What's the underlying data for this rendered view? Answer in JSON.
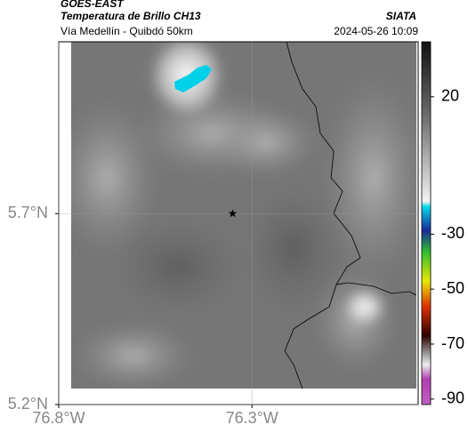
{
  "header": {
    "source": "GOES-EAST",
    "product": "Temperatura de Brillo CH13",
    "agency": "SIATA",
    "route": "Vía Medellín - Quibdó 50km",
    "datetime": "2024-05-26 10:09"
  },
  "map": {
    "xlim": [
      -76.8,
      -75.87
    ],
    "ylim": [
      5.2,
      6.15
    ],
    "xticks": [
      {
        "value": -76.8,
        "label": "76.8°W"
      },
      {
        "value": -76.3,
        "label": "76.3°W"
      }
    ],
    "yticks": [
      {
        "value": 5.2,
        "label": "5.2°N"
      },
      {
        "value": 5.7,
        "label": "5.7°N"
      }
    ],
    "grid": true,
    "marker": [
      -76.35,
      5.7
    ]
  },
  "colorbar": {
    "lim": [
      -92,
      40
    ],
    "ticks": [
      20,
      -30,
      -50,
      -70,
      -90
    ]
  }
}
